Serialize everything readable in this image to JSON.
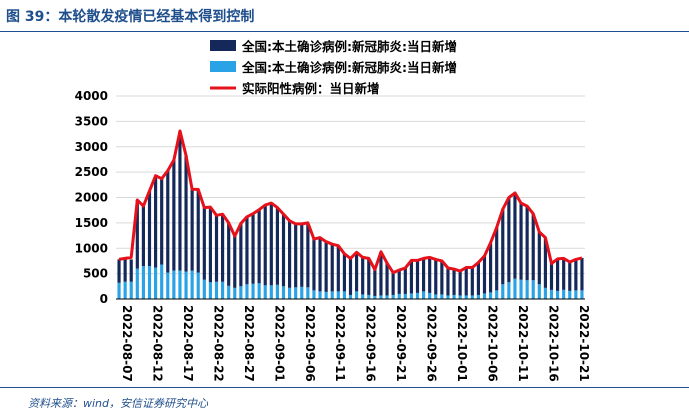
{
  "figure": {
    "title": "图 39：本轮散发疫情已经基本得到控制",
    "source": "资料来源：wind，安信证券研究中心"
  },
  "colors": {
    "dark_bar": "#14285a",
    "light_bar": "#29a3e6",
    "line": "#e6121b",
    "accent": "#1f4e8c"
  },
  "chart_data": {
    "type": "bar",
    "title": "",
    "xlabel": "",
    "ylabel": "",
    "ylim": [
      0,
      4000
    ],
    "y_ticks": [
      "0",
      "500",
      "1000",
      "1500",
      "2000",
      "2500",
      "3000",
      "3500",
      "4000"
    ],
    "x_ticks": [
      "2022-08-07",
      "2022-08-12",
      "2022-08-17",
      "2022-08-22",
      "2022-08-27",
      "2022-09-01",
      "2022-09-06",
      "2022-09-11",
      "2022-09-16",
      "2022-09-21",
      "2022-09-26",
      "2022-10-01",
      "2022-10-06",
      "2022-10-11",
      "2022-10-16",
      "2022-10-21"
    ],
    "legend": [
      "全国:本土确诊病例:新冠肺炎:当日新增",
      "全国:本土确诊病例:新冠肺炎:当日新增",
      "实际阳性病例：当日新增"
    ],
    "series": [
      {
        "name": "全国:本土确诊病例:新冠肺炎:当日新增",
        "role": "stacked-top",
        "values": [
          460,
          460,
          440,
          1350,
          1180,
          1480,
          1810,
          1690,
          2010,
          2180,
          2750,
          2290,
          1600,
          1640,
          1420,
          1480,
          1310,
          1330,
          1240,
          1020,
          1240,
          1330,
          1380,
          1450,
          1580,
          1620,
          1520,
          1420,
          1320,
          1250,
          1240,
          1270,
          1010,
          1060,
          990,
          930,
          900,
          740,
          720,
          770,
          730,
          720,
          520,
          860,
          640,
          440,
          470,
          510,
          650,
          640,
          650,
          700,
          690,
          660,
          540,
          510,
          480,
          550,
          550,
          640,
          740,
          980,
          1240,
          1480,
          1670,
          1690,
          1510,
          1460,
          1310,
          1030,
          990,
          520,
          630,
          620,
          570,
          610,
          640
        ]
      },
      {
        "name": "全国:本土确诊病例:新冠肺炎:当日新增",
        "role": "stacked-bottom",
        "values": [
          320,
          340,
          340,
          600,
          650,
          650,
          620,
          680,
          520,
          560,
          560,
          540,
          560,
          520,
          380,
          330,
          340,
          340,
          260,
          220,
          250,
          290,
          300,
          310,
          270,
          270,
          280,
          250,
          220,
          230,
          240,
          230,
          170,
          150,
          140,
          150,
          150,
          150,
          80,
          150,
          90,
          80,
          60,
          70,
          70,
          80,
          100,
          100,
          110,
          120,
          150,
          120,
          90,
          90,
          70,
          80,
          70,
          70,
          70,
          80,
          110,
          130,
          170,
          290,
          330,
          400,
          380,
          370,
          370,
          290,
          220,
          180,
          160,
          180,
          160,
          170,
          170
        ]
      },
      {
        "name": "实际阳性病例：当日新增",
        "type": "line",
        "values": [
          780,
          800,
          820,
          1950,
          1830,
          2130,
          2430,
          2370,
          2530,
          2740,
          3310,
          2830,
          2160,
          2160,
          1800,
          1810,
          1650,
          1670,
          1500,
          1240,
          1490,
          1620,
          1680,
          1760,
          1850,
          1890,
          1800,
          1670,
          1540,
          1480,
          1480,
          1500,
          1180,
          1210,
          1130,
          1080,
          1050,
          890,
          800,
          920,
          820,
          800,
          580,
          930,
          710,
          520,
          570,
          610,
          760,
          760,
          800,
          820,
          780,
          750,
          610,
          590,
          550,
          620,
          620,
          720,
          850,
          1110,
          1410,
          1770,
          2000,
          2090,
          1890,
          1830,
          1680,
          1320,
          1210,
          700,
          790,
          800,
          730,
          780,
          810
        ]
      }
    ]
  }
}
